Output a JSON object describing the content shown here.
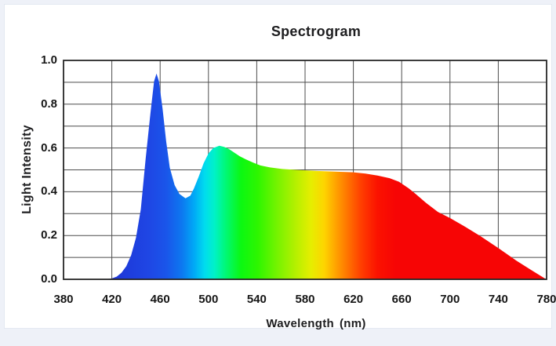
{
  "chart_data": {
    "type": "area",
    "title": "Spectrogram",
    "xlabel": "Wavelength",
    "xlabel_unit": "(nm)",
    "ylabel": "Light Intensity",
    "xlim": [
      380,
      780
    ],
    "ylim": [
      0.0,
      1.0
    ],
    "x_tick_labels": [
      "380",
      "420",
      "460",
      "500",
      "540",
      "580",
      "620",
      "660",
      "700",
      "740",
      "780"
    ],
    "x_tick_values": [
      380,
      420,
      460,
      500,
      540,
      580,
      620,
      660,
      700,
      740,
      780
    ],
    "y_tick_labels": [
      "0.0",
      "0.2",
      "0.4",
      "0.6",
      "0.8",
      "1.0"
    ],
    "y_tick_values": [
      0.0,
      0.2,
      0.4,
      0.6,
      0.8,
      1.0
    ],
    "y_minor_grid_step": 0.1,
    "grid": "on",
    "legend": "none",
    "series_name": "light-intensity-spectrum",
    "annotations": {
      "blue_peak": {
        "x": 457,
        "y": 0.94
      },
      "dip": {
        "x": 481,
        "y": 0.37
      },
      "green_peak": {
        "x": 509,
        "y": 0.61
      },
      "plateau": {
        "x": 600,
        "y": 0.49
      }
    },
    "points": [
      [
        380,
        0
      ],
      [
        415,
        0
      ],
      [
        420,
        0.004
      ],
      [
        424,
        0.012
      ],
      [
        428,
        0.03
      ],
      [
        432,
        0.06
      ],
      [
        436,
        0.11
      ],
      [
        440,
        0.19
      ],
      [
        444,
        0.32
      ],
      [
        448,
        0.55
      ],
      [
        452,
        0.76
      ],
      [
        455,
        0.905
      ],
      [
        457,
        0.94
      ],
      [
        459,
        0.905
      ],
      [
        462,
        0.78
      ],
      [
        465,
        0.63
      ],
      [
        468,
        0.51
      ],
      [
        472,
        0.43
      ],
      [
        476,
        0.39
      ],
      [
        481,
        0.37
      ],
      [
        485,
        0.382
      ],
      [
        488,
        0.415
      ],
      [
        492,
        0.47
      ],
      [
        496,
        0.53
      ],
      [
        500,
        0.575
      ],
      [
        504,
        0.6
      ],
      [
        509,
        0.61
      ],
      [
        513,
        0.605
      ],
      [
        517,
        0.595
      ],
      [
        521,
        0.58
      ],
      [
        526,
        0.562
      ],
      [
        531,
        0.548
      ],
      [
        537,
        0.533
      ],
      [
        543,
        0.52
      ],
      [
        551,
        0.511
      ],
      [
        561,
        0.504
      ],
      [
        575,
        0.499
      ],
      [
        590,
        0.495
      ],
      [
        605,
        0.492
      ],
      [
        620,
        0.489
      ],
      [
        630,
        0.483
      ],
      [
        640,
        0.474
      ],
      [
        650,
        0.462
      ],
      [
        658,
        0.445
      ],
      [
        666,
        0.415
      ],
      [
        672,
        0.388
      ],
      [
        680,
        0.35
      ],
      [
        690,
        0.308
      ],
      [
        700,
        0.28
      ],
      [
        712,
        0.242
      ],
      [
        725,
        0.198
      ],
      [
        740,
        0.143
      ],
      [
        755,
        0.085
      ],
      [
        768,
        0.04
      ],
      [
        778,
        0.006
      ],
      [
        780,
        0
      ]
    ],
    "colors": {
      "grid": "#4d4d4d",
      "frame": "#262626",
      "text": "#1d1d1f",
      "background": "#ffffff",
      "page_background": "#eef1f8",
      "spectrum_gradient": [
        [
          420,
          "#1d35d6"
        ],
        [
          450,
          "#1f46e4"
        ],
        [
          465,
          "#1a55ea"
        ],
        [
          478,
          "#0d78f0"
        ],
        [
          488,
          "#00a8f6"
        ],
        [
          497,
          "#00dcee"
        ],
        [
          505,
          "#00f2c8"
        ],
        [
          514,
          "#00f878"
        ],
        [
          527,
          "#0bf812"
        ],
        [
          541,
          "#2ef600"
        ],
        [
          557,
          "#76f300"
        ],
        [
          572,
          "#b4f000"
        ],
        [
          585,
          "#e6ee00"
        ],
        [
          596,
          "#fed400"
        ],
        [
          606,
          "#ffa000"
        ],
        [
          616,
          "#ff7000"
        ],
        [
          627,
          "#ff3c00"
        ],
        [
          640,
          "#fb1200"
        ],
        [
          655,
          "#f70505"
        ],
        [
          780,
          "#f70505"
        ]
      ]
    }
  }
}
